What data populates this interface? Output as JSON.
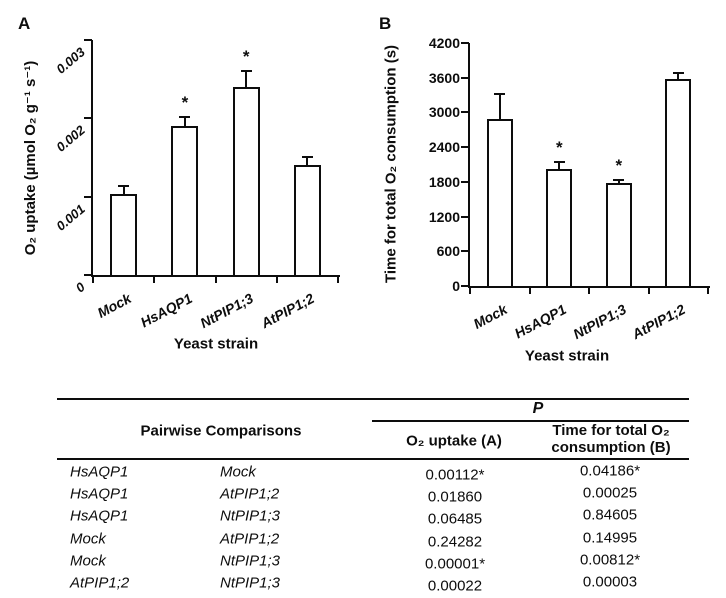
{
  "figure": {
    "background": "#ffffff",
    "ink_color": "#0d0d0d",
    "bar_fill": "#ffffff",
    "bar_border": "#0d0d0d"
  },
  "panel_a": {
    "label": "A"
  },
  "panel_b": {
    "label": "B"
  },
  "chart_data": [
    {
      "id": "panel-a",
      "type": "bar",
      "categories": [
        "Mock",
        "HsAQP1",
        "NtPIP1;3",
        "AtPIP1;2"
      ],
      "values": [
        0.00103,
        0.0019,
        0.0024,
        0.00141
      ],
      "errors": [
        0.0001,
        0.00012,
        0.0002,
        0.0001
      ],
      "significant": [
        false,
        true,
        true,
        false
      ],
      "sig_marker": "*",
      "title": "",
      "xlabel": "Yeast strain",
      "ylabel": "O₂ uptake (µmol O₂ g⁻¹ s⁻¹)",
      "ylim": [
        0,
        0.003
      ],
      "yticks": [
        0,
        0.001,
        0.002,
        0.003
      ],
      "ytick_labels": [
        "0",
        "0.001",
        "0.002",
        "0.003"
      ],
      "grid": false,
      "legend": false
    },
    {
      "id": "panel-b",
      "type": "bar",
      "categories": [
        "Mock",
        "HsAQP1",
        "NtPIP1;3",
        "AtPIP1;2"
      ],
      "values": [
        2890,
        2020,
        1780,
        3580
      ],
      "errors": [
        430,
        120,
        60,
        100
      ],
      "significant": [
        false,
        true,
        true,
        false
      ],
      "sig_marker": "*",
      "title": "",
      "xlabel": "Yeast strain",
      "ylabel": "Time for total O₂ consumption (s)",
      "ylim": [
        0,
        4200
      ],
      "yticks": [
        0,
        600,
        1200,
        1800,
        2400,
        3000,
        3600,
        4200
      ],
      "ytick_labels": [
        "0",
        "600",
        "1200",
        "1800",
        "2400",
        "3000",
        "3600",
        "4200"
      ],
      "grid": false,
      "legend": false
    }
  ],
  "table": {
    "p_header": "P",
    "group_header": "Pairwise Comparisons",
    "col_headers": [
      "O₂ uptake (A)",
      "Time for total O₂ consumption (B)"
    ],
    "rows": [
      {
        "a": "HsAQP1",
        "b": "Mock",
        "p_uptake": "0.00112*",
        "p_time": "0.04186*"
      },
      {
        "a": "HsAQP1",
        "b": "AtPIP1;2",
        "p_uptake": "0.01860",
        "p_time": "0.00025"
      },
      {
        "a": "HsAQP1",
        "b": "NtPIP1;3",
        "p_uptake": "0.06485",
        "p_time": "0.84605"
      },
      {
        "a": "Mock",
        "b": "AtPIP1;2",
        "p_uptake": "0.24282",
        "p_time": "0.14995"
      },
      {
        "a": "Mock",
        "b": "NtPIP1;3",
        "p_uptake": "0.00001*",
        "p_time": "0.00812*"
      },
      {
        "a": "AtPIP1;2",
        "b": "NtPIP1;3",
        "p_uptake": "0.00022",
        "p_time": "0.00003"
      }
    ]
  }
}
